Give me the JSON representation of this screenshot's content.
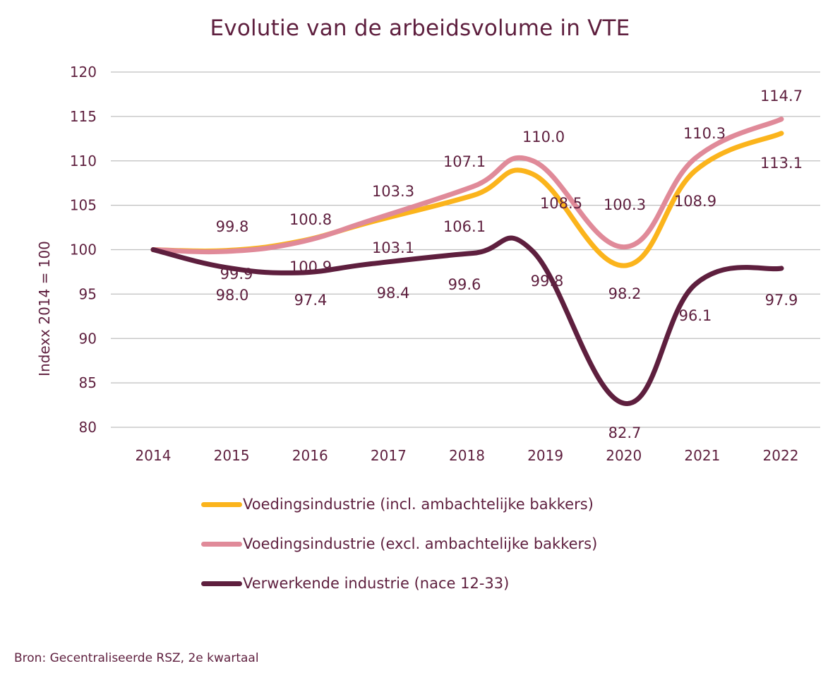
{
  "chart_data": {
    "type": "line",
    "title": "Evolutie van de arbeidsvolume in VTE",
    "xlabel": "",
    "ylabel": "Indexx 2014 = 100",
    "ylim": [
      80,
      120
    ],
    "yticks": [
      "120",
      "115",
      "110",
      "105",
      "100",
      "95",
      "90",
      "85",
      "80"
    ],
    "ytick_values": [
      120,
      115,
      110,
      105,
      100,
      95,
      90,
      85,
      80
    ],
    "categories": [
      "2014",
      "2015",
      "2016",
      "2017",
      "2018",
      "2019",
      "2020",
      "2021",
      "2022"
    ],
    "grid": true,
    "legend_position": "bottom",
    "series": [
      {
        "name": "Voedingsindustrie (incl. ambachtelijke bakkers)",
        "color": "#fbb41c",
        "values": [
          100,
          99.9,
          100.9,
          103.1,
          106.1,
          108.5,
          98.2,
          108.9,
          113.1
        ],
        "labels": [
          "",
          "99.9",
          "100.9",
          "103.1",
          "106.1",
          "108.5",
          "98.2",
          "108.9",
          "113.1"
        ]
      },
      {
        "name": "Voedingsindustrie (excl. ambachtelijke bakkers)",
        "color": "#e08a99",
        "values": [
          100,
          99.8,
          100.8,
          103.3,
          107.1,
          110.0,
          100.3,
          110.3,
          114.7
        ],
        "labels": [
          "",
          "99.8",
          "100.8",
          "103.3",
          "107.1",
          "110.0",
          "100.3",
          "110.3",
          "114.7"
        ]
      },
      {
        "name": "Verwerkende industrie (nace 12-33)",
        "color": "#5e1f3e",
        "values": [
          100,
          98.0,
          97.4,
          98.4,
          99.6,
          99.8,
          82.7,
          96.1,
          97.9
        ],
        "labels": [
          "",
          "98.0",
          "97.4",
          "98.4",
          "99.6",
          "99.8",
          "82.7",
          "96.1",
          "97.9"
        ]
      }
    ]
  },
  "footer": {
    "source": "Bron: Gecentraliseerde RSZ, 2e kwartaal"
  },
  "colors": {
    "text": "#5e1f3e",
    "grid": "#bfbfbf"
  }
}
